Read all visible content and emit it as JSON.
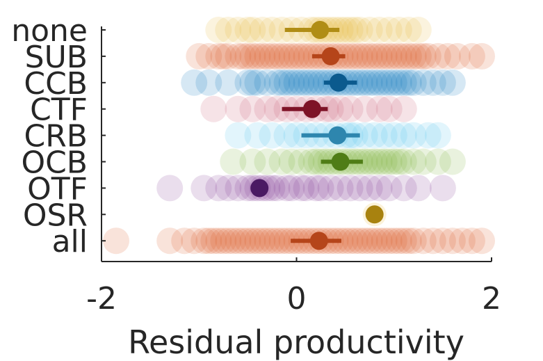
{
  "chart_data": {
    "type": "scatter",
    "xlabel": "Residual productivity",
    "ylabel": "",
    "title": "",
    "xlim": [
      -2,
      2
    ],
    "xticks": [
      "-2",
      "0",
      "2"
    ],
    "grid": false,
    "categories": [
      "none",
      "SUB",
      "CCB",
      "CTF",
      "CRB",
      "OCB",
      "OTF",
      "OSR",
      "all"
    ],
    "series": [
      {
        "category": "none",
        "color": "#E8B530",
        "summary_color": "#B08D15",
        "mean": 0.24,
        "ci": [
          -0.12,
          0.44
        ],
        "points": [
          -0.8,
          -0.7,
          -0.6,
          -0.5,
          -0.45,
          -0.35,
          -0.25,
          -0.15,
          -0.05,
          0.05,
          0.15,
          0.2,
          0.25,
          0.3,
          0.35,
          0.4,
          0.45,
          0.5,
          0.55,
          0.6,
          0.65,
          0.75,
          0.85,
          0.95,
          1.05,
          1.15,
          1.25
        ]
      },
      {
        "category": "SUB",
        "color": "#D95319",
        "summary_color": "#B5451A",
        "mean": 0.35,
        "ci": [
          0.16,
          0.5
        ],
        "points": [
          -1.0,
          -0.9,
          -0.8,
          -0.75,
          -0.7,
          -0.6,
          -0.55,
          -0.5,
          -0.45,
          -0.4,
          -0.35,
          -0.3,
          -0.25,
          -0.2,
          -0.15,
          -0.1,
          -0.05,
          0.0,
          0.05,
          0.1,
          0.15,
          0.2,
          0.25,
          0.3,
          0.35,
          0.4,
          0.45,
          0.5,
          0.55,
          0.6,
          0.65,
          0.7,
          0.75,
          0.8,
          0.85,
          0.9,
          0.95,
          1.0,
          1.05,
          1.1,
          1.15,
          1.2,
          1.25,
          1.3,
          1.35,
          1.45,
          1.55,
          1.65,
          1.8,
          1.9
        ]
      },
      {
        "category": "CCB",
        "color": "#0072BD",
        "summary_color": "#0B5A8E",
        "mean": 0.43,
        "ci": [
          0.28,
          0.62
        ],
        "points": [
          -1.05,
          -0.9,
          -0.7,
          -0.5,
          -0.45,
          -0.4,
          -0.3,
          -0.2,
          -0.15,
          -0.1,
          -0.05,
          0.0,
          0.05,
          0.1,
          0.15,
          0.2,
          0.25,
          0.3,
          0.35,
          0.4,
          0.45,
          0.5,
          0.55,
          0.6,
          0.65,
          0.7,
          0.75,
          0.8,
          0.85,
          0.9,
          0.95,
          1.0,
          1.05,
          1.1,
          1.15,
          1.2,
          1.3,
          1.4,
          1.5,
          1.6
        ]
      },
      {
        "category": "CTF",
        "color": "#C9506A",
        "summary_color": "#7E1327",
        "mean": 0.16,
        "ci": [
          -0.15,
          0.32
        ],
        "points": [
          -0.85,
          -0.6,
          -0.45,
          -0.3,
          -0.2,
          -0.1,
          0.0,
          0.1,
          0.2,
          0.3,
          0.35,
          0.45,
          0.55,
          0.7,
          0.85,
          0.95,
          1.1
        ]
      },
      {
        "category": "CRB",
        "color": "#4DBEEE",
        "summary_color": "#2E86AE",
        "mean": 0.42,
        "ci": [
          0.05,
          0.65
        ],
        "points": [
          -0.6,
          -0.4,
          -0.25,
          -0.1,
          0.0,
          0.1,
          0.2,
          0.3,
          0.4,
          0.5,
          0.55,
          0.6,
          0.7,
          0.8,
          0.9,
          1.0,
          1.1,
          1.2,
          1.35,
          1.45
        ]
      },
      {
        "category": "OCB",
        "color": "#77AC30",
        "summary_color": "#4F7D16",
        "mean": 0.45,
        "ci": [
          0.25,
          0.68
        ],
        "points": [
          -0.65,
          -0.45,
          -0.3,
          -0.15,
          -0.05,
          0.05,
          0.15,
          0.2,
          0.25,
          0.3,
          0.35,
          0.4,
          0.45,
          0.5,
          0.55,
          0.6,
          0.65,
          0.7,
          0.75,
          0.8,
          0.85,
          0.9,
          0.95,
          1.0,
          1.05,
          1.1,
          1.2,
          1.3,
          1.45,
          1.6
        ]
      },
      {
        "category": "OTF",
        "color": "#7E2F8E",
        "summary_color": "#4A1A63",
        "mean": -0.38,
        "ci": null,
        "points": [
          -1.3,
          -0.95,
          -0.8,
          -0.7,
          -0.6,
          -0.5,
          -0.45,
          -0.4,
          -0.35,
          -0.3,
          -0.25,
          -0.2,
          -0.1,
          -0.05,
          0.05,
          0.1,
          0.2,
          0.25,
          0.35,
          0.45,
          0.55,
          0.65,
          0.75,
          0.85,
          0.95,
          1.1,
          1.25,
          1.5
        ]
      },
      {
        "category": "OSR",
        "color": "#E8B530",
        "summary_color": "#A8820F",
        "mean": 0.8,
        "ci": null,
        "points": [
          0.8
        ]
      },
      {
        "category": "all",
        "color": "#D95319",
        "summary_color": "#B5451A",
        "mean": 0.23,
        "ci": [
          -0.06,
          0.46
        ],
        "points": [
          -1.85,
          -1.3,
          -1.15,
          -1.05,
          -0.95,
          -0.9,
          -0.85,
          -0.8,
          -0.75,
          -0.7,
          -0.65,
          -0.6,
          -0.55,
          -0.5,
          -0.45,
          -0.4,
          -0.35,
          -0.3,
          -0.25,
          -0.2,
          -0.15,
          -0.1,
          -0.05,
          0.0,
          0.05,
          0.1,
          0.15,
          0.2,
          0.25,
          0.3,
          0.35,
          0.4,
          0.45,
          0.5,
          0.55,
          0.6,
          0.65,
          0.7,
          0.75,
          0.8,
          0.85,
          0.9,
          0.95,
          1.0,
          1.05,
          1.1,
          1.15,
          1.2,
          1.3,
          1.4,
          1.5,
          1.6,
          1.7,
          1.8,
          1.9
        ]
      }
    ]
  }
}
